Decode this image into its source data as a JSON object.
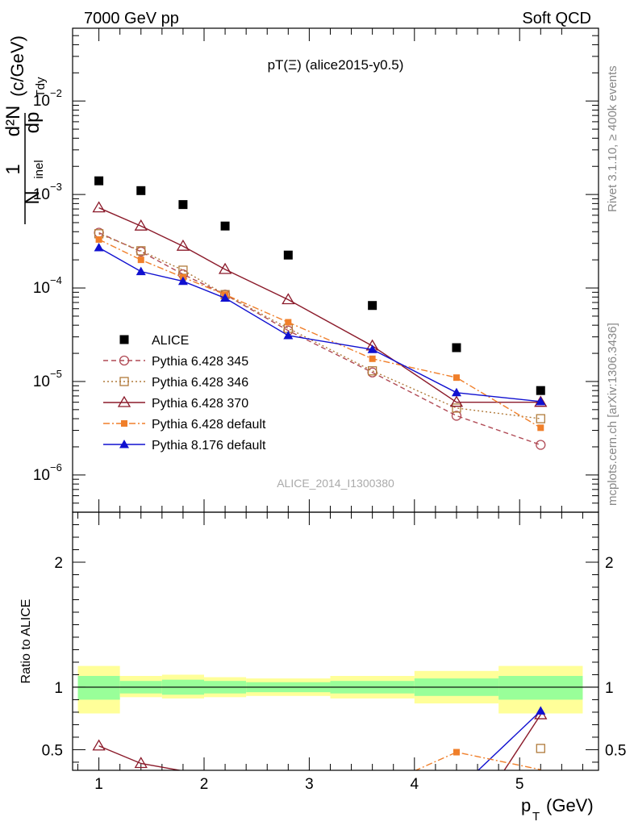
{
  "header": {
    "left": "7000 GeV pp",
    "right": "Soft QCD"
  },
  "side_labels": {
    "rivet": "Rivet 3.1.10, ≥ 400k events",
    "mcplots": "mcplots.cern.ch [arXiv:1306.3436]"
  },
  "colors": {
    "alice": "#000000",
    "p345": "#b04a55",
    "p346": "#b07a3a",
    "p370": "#8b1a2a",
    "pdefault": "#f07f2a",
    "p8": "#1010d0",
    "band_inner": "#99ff99",
    "band_outer": "#ffff99"
  },
  "chart_data": [
    {
      "type": "scatter",
      "title": "pT(Ξ) (alice2015-y0.5)",
      "watermark": "ALICE_2014_I1300380",
      "ylabel": "1/N_inel d²N/dp_T dy (c/GeV)",
      "ylabel_parts": {
        "one": "1",
        "d2N": "d²N",
        "nsym": "N",
        "nsub": "inel",
        "dp": "dp",
        "dpsub": "Tdy",
        "unit": "(c/GeV)"
      },
      "yscale": "log",
      "ylim": [
        4e-07,
        0.06
      ],
      "xlim": [
        0.75,
        5.75
      ],
      "yticks_major": [
        {
          "v": 1e-06,
          "base": "10",
          "exp": "−6"
        },
        {
          "v": 1e-05,
          "base": "10",
          "exp": "−5"
        },
        {
          "v": 0.0001,
          "base": "10",
          "exp": "−4"
        },
        {
          "v": 0.001,
          "base": "10",
          "exp": "−3"
        },
        {
          "v": 0.01,
          "base": "10",
          "exp": "−2"
        }
      ],
      "legend_position": "lower-left",
      "series": [
        {
          "key": "alice",
          "name": "ALICE",
          "marker": "square-filled",
          "line": "none",
          "x": [
            1.0,
            1.4,
            1.8,
            2.2,
            2.8,
            3.6,
            4.4,
            5.2
          ],
          "y": [
            0.0014,
            0.0011,
            0.00078,
            0.00046,
            0.000225,
            6.5e-05,
            2.3e-05,
            8e-06
          ]
        },
        {
          "key": "p345",
          "name": "Pythia 6.428 345",
          "marker": "circle-open",
          "line": "dashed",
          "x": [
            1.0,
            1.4,
            1.8,
            2.2,
            2.8,
            3.6,
            4.4,
            5.2
          ],
          "y": [
            0.00039,
            0.000245,
            0.00014,
            8.5e-05,
            3.5e-05,
            1.25e-05,
            4.3e-06,
            2.1e-06
          ]
        },
        {
          "key": "p346",
          "name": "Pythia 6.428 346",
          "marker": "square-open",
          "line": "dotted",
          "x": [
            1.0,
            1.4,
            1.8,
            2.2,
            2.8,
            3.6,
            4.4,
            5.2
          ],
          "y": [
            0.00038,
            0.00025,
            0.000155,
            8.5e-05,
            3.7e-05,
            1.3e-05,
            5.2e-06,
            4e-06
          ]
        },
        {
          "key": "p370",
          "name": "Pythia 6.428 370",
          "marker": "triangle-open",
          "line": "solid",
          "x": [
            1.0,
            1.4,
            1.8,
            2.2,
            2.8,
            3.6,
            4.4,
            5.2
          ],
          "y": [
            0.00072,
            0.00046,
            0.00028,
            0.000158,
            7.5e-05,
            2.4e-05,
            6e-06,
            6e-06
          ]
        },
        {
          "key": "pdefault",
          "name": "Pythia 6.428 default",
          "marker": "square-filled-small",
          "line": "dashdot",
          "x": [
            1.0,
            1.4,
            1.8,
            2.2,
            2.8,
            3.6,
            4.4,
            5.2
          ],
          "y": [
            0.00033,
            0.0002,
            0.00013,
            8.5e-05,
            4.3e-05,
            1.75e-05,
            1.1e-05,
            3.2e-06
          ]
        },
        {
          "key": "p8",
          "name": "Pythia 8.176 default",
          "marker": "triangle-filled",
          "line": "solid",
          "x": [
            1.0,
            1.4,
            1.8,
            2.2,
            2.8,
            3.6,
            4.4,
            5.2
          ],
          "y": [
            0.00027,
            0.00015,
            0.000118,
            7.8e-05,
            3.1e-05,
            2.2e-05,
            7.6e-06,
            6.1e-06
          ]
        }
      ]
    },
    {
      "type": "line",
      "ylabel": "Ratio to ALICE",
      "xlabel": "p_T (GeV)",
      "xlabel_parts": {
        "p": "p",
        "sub": "T",
        "unit": "(GeV)"
      },
      "xlim": [
        0.75,
        5.75
      ],
      "ylim": [
        0.335,
        2.4
      ],
      "xticks": [
        1,
        2,
        3,
        4,
        5
      ],
      "xtick_labels": [
        "1",
        "2",
        "3",
        "4",
        "5"
      ],
      "yticks": [
        0.5,
        1,
        2
      ],
      "ytick_labels": [
        "0.5",
        "1",
        "2"
      ],
      "bands": [
        {
          "x0": 0.8,
          "x1": 1.2,
          "inner": [
            0.9,
            1.09
          ],
          "outer": [
            0.79,
            1.17
          ]
        },
        {
          "x0": 1.2,
          "x1": 1.6,
          "inner": [
            0.95,
            1.05
          ],
          "outer": [
            0.92,
            1.09
          ]
        },
        {
          "x0": 1.6,
          "x1": 2.0,
          "inner": [
            0.94,
            1.06
          ],
          "outer": [
            0.91,
            1.1
          ]
        },
        {
          "x0": 2.0,
          "x1": 2.4,
          "inner": [
            0.95,
            1.05
          ],
          "outer": [
            0.92,
            1.08
          ]
        },
        {
          "x0": 2.4,
          "x1": 3.2,
          "inner": [
            0.96,
            1.04
          ],
          "outer": [
            0.93,
            1.07
          ]
        },
        {
          "x0": 3.2,
          "x1": 4.0,
          "inner": [
            0.95,
            1.05
          ],
          "outer": [
            0.91,
            1.09
          ]
        },
        {
          "x0": 4.0,
          "x1": 4.8,
          "inner": [
            0.93,
            1.07
          ],
          "outer": [
            0.87,
            1.13
          ]
        },
        {
          "x0": 4.8,
          "x1": 5.6,
          "inner": [
            0.9,
            1.09
          ],
          "outer": [
            0.79,
            1.17
          ]
        }
      ],
      "series": [
        {
          "key": "p370",
          "x": [
            1.0,
            1.4,
            1.8
          ],
          "y": [
            0.53,
            0.39,
            0.33
          ]
        },
        {
          "key": "p370",
          "x": [
            4.85,
            5.2
          ],
          "y": [
            0.33,
            0.78
          ]
        },
        {
          "key": "p8",
          "x": [
            4.6,
            5.2
          ],
          "y": [
            0.33,
            0.81
          ]
        },
        {
          "key": "pdefault",
          "x": [
            4.0,
            4.4,
            5.2
          ],
          "y": [
            0.33,
            0.48,
            0.34
          ]
        },
        {
          "key": "p346",
          "x": [
            5.2
          ],
          "y": [
            0.51
          ]
        }
      ]
    }
  ]
}
